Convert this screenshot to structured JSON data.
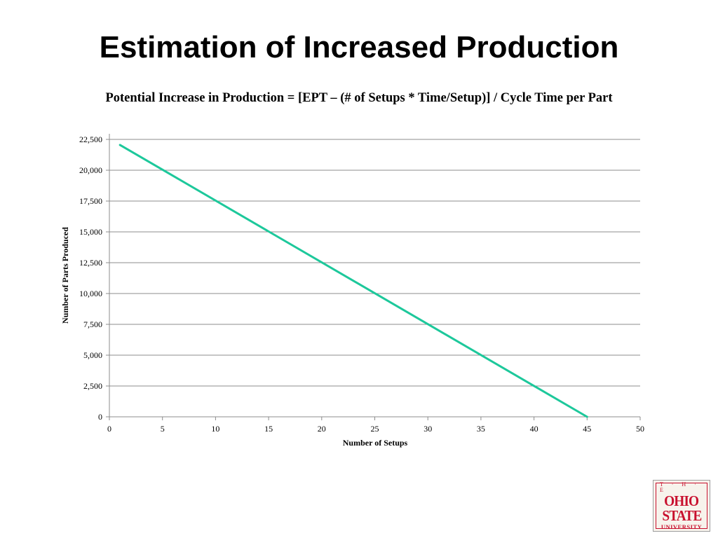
{
  "slide": {
    "title": "Estimation of Increased Production",
    "formula": "Potential Increase in Production = [EPT – (# of Setups * Time/Setup)] / Cycle Time per Part"
  },
  "logo": {
    "line1": "T · H · E",
    "line2": "OHIO",
    "line3": "STATE",
    "line4": "UNIVERSITY",
    "color": "#c8102e"
  },
  "chart_data": {
    "type": "line",
    "title": "",
    "xlabel": "Number of Setups",
    "ylabel": "Number of Parts Produced",
    "xlim": [
      0,
      50
    ],
    "ylim": [
      0,
      22500
    ],
    "x_ticks": [
      "0",
      "5",
      "10",
      "15",
      "20",
      "25",
      "30",
      "35",
      "40",
      "45",
      "50"
    ],
    "y_ticks": [
      "0",
      "2,500",
      "5,000",
      "7,500",
      "10,000",
      "12,500",
      "15,000",
      "17,500",
      "20,000",
      "22,500"
    ],
    "grid": "horizontal",
    "legend": "none",
    "series": [
      {
        "color": "#1dc89b",
        "points": [
          [
            1,
            22050
          ],
          [
            45,
            0
          ]
        ]
      }
    ]
  }
}
